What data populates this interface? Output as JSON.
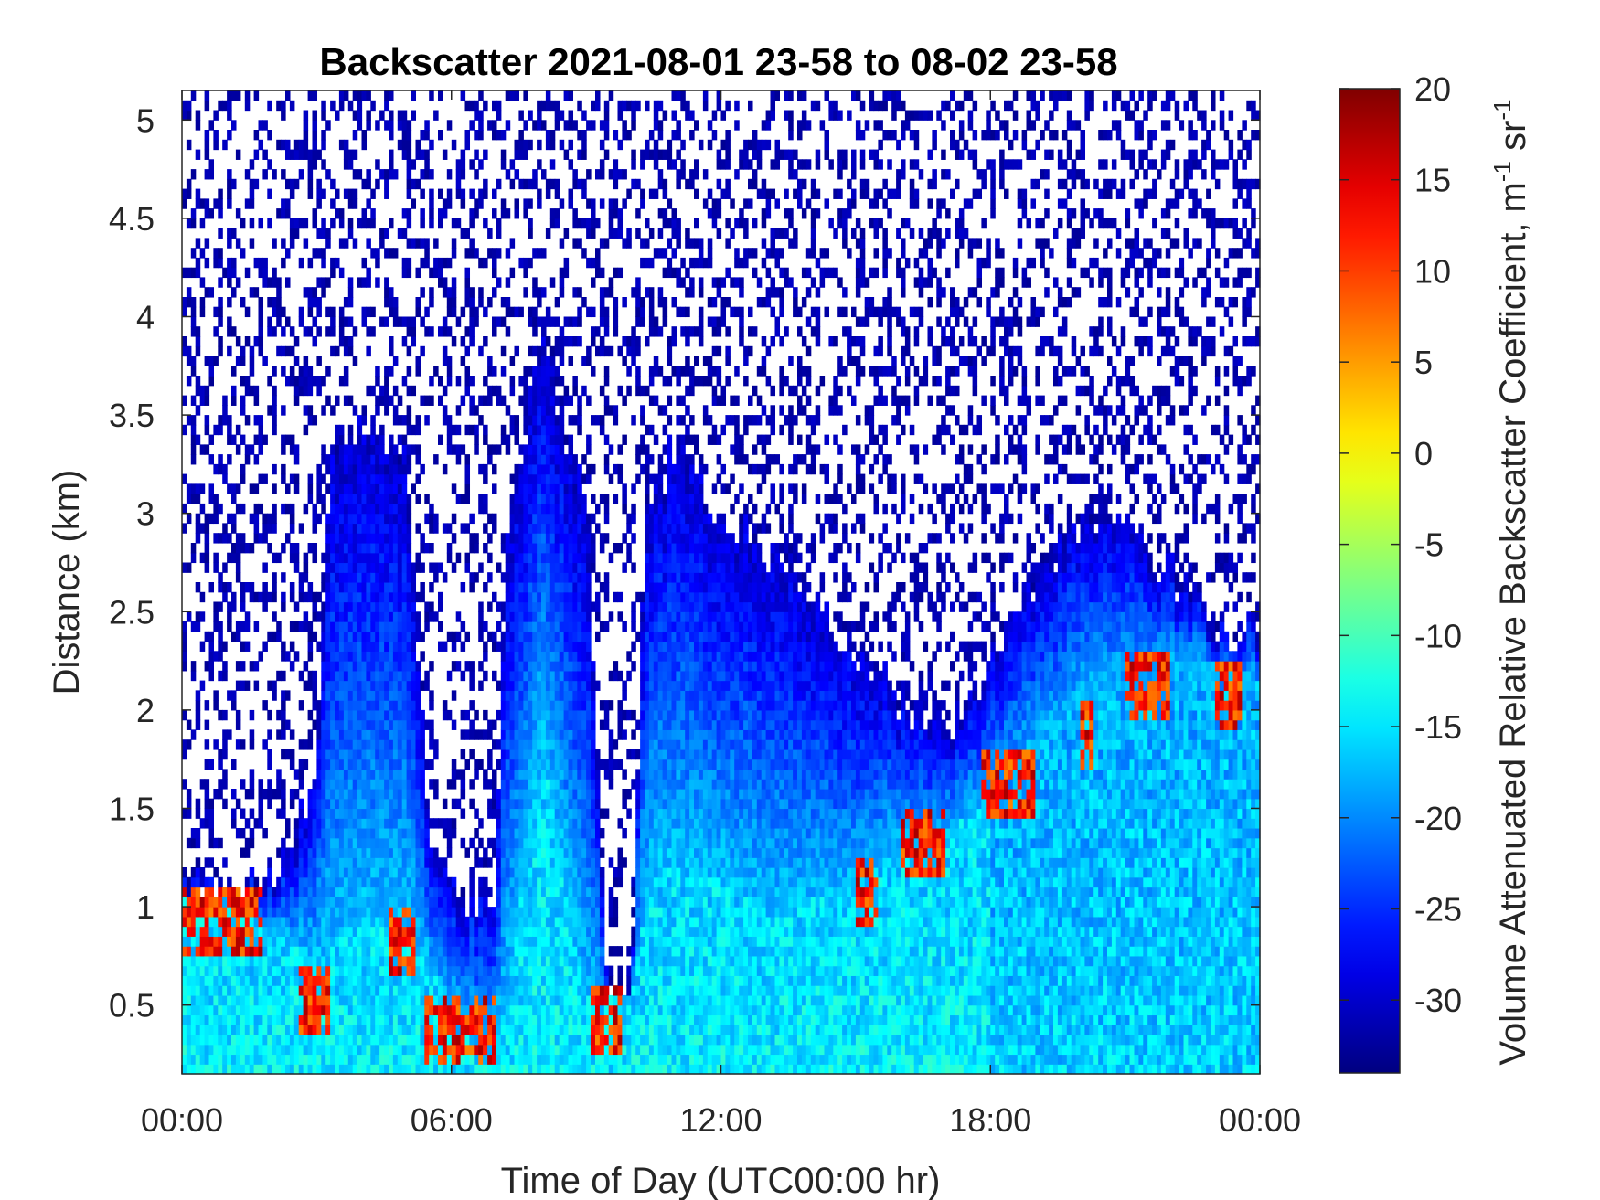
{
  "chart_data": {
    "type": "heatmap",
    "title": "Backscatter 2021-08-01 23-58 to 08-02 23-58",
    "xlabel": "Time of Day (UTC00:00 hr)",
    "ylabel": "Distance (km)",
    "x_range_hours": [
      0,
      24
    ],
    "y_range_km": [
      0.15,
      5.15
    ],
    "x_ticks": [
      {
        "value": 0,
        "label": "00:00"
      },
      {
        "value": 6,
        "label": "06:00"
      },
      {
        "value": 12,
        "label": "12:00"
      },
      {
        "value": 18,
        "label": "18:00"
      },
      {
        "value": 24,
        "label": "00:00"
      }
    ],
    "y_ticks": [
      {
        "value": 0.5,
        "label": "0.5"
      },
      {
        "value": 1,
        "label": "1"
      },
      {
        "value": 1.5,
        "label": "1.5"
      },
      {
        "value": 2,
        "label": "2"
      },
      {
        "value": 2.5,
        "label": "2.5"
      },
      {
        "value": 3,
        "label": "3"
      },
      {
        "value": 3.5,
        "label": "3.5"
      },
      {
        "value": 4,
        "label": "4"
      },
      {
        "value": 4.5,
        "label": "4.5"
      },
      {
        "value": 5,
        "label": "5"
      }
    ],
    "colorbar": {
      "label": "Volume Attenuated Relative Backscatter Coefficient, m",
      "label_unit_sup1": "-1",
      "label_unit_mid": " sr",
      "label_unit_sup2": "-1",
      "range": [
        -34,
        20
      ],
      "ticks": [
        20,
        15,
        10,
        5,
        0,
        -5,
        -10,
        -15,
        -20,
        -25,
        -30
      ],
      "tick_labels": [
        "20",
        "15",
        "10",
        "5",
        "0",
        "-5",
        "-10",
        "-15",
        "-20",
        "-25",
        "-30"
      ],
      "colormap": "jet"
    },
    "grid": false,
    "profile_keypoints": {
      "boundary_top_km": [
        [
          0,
          1.1
        ],
        [
          1,
          1.0
        ],
        [
          2,
          1.1
        ],
        [
          3,
          1.6
        ],
        [
          3.3,
          3.3
        ],
        [
          4,
          3.5
        ],
        [
          5,
          3.2
        ],
        [
          5.5,
          1.3
        ],
        [
          6,
          1.1
        ],
        [
          7,
          1.0
        ],
        [
          7.2,
          2.8
        ],
        [
          8,
          3.9
        ],
        [
          9,
          3.0
        ],
        [
          9.5,
          0.5
        ],
        [
          10,
          0.5
        ],
        [
          10.3,
          3.0
        ],
        [
          11,
          3.3
        ],
        [
          12,
          3.0
        ],
        [
          13,
          2.8
        ],
        [
          14,
          2.5
        ],
        [
          15,
          2.3
        ],
        [
          16,
          2.0
        ],
        [
          17,
          1.9
        ],
        [
          18,
          2.2
        ],
        [
          19,
          2.6
        ],
        [
          20,
          2.9
        ],
        [
          21,
          2.9
        ],
        [
          22,
          2.7
        ],
        [
          23,
          2.4
        ],
        [
          24,
          2.4
        ]
      ],
      "aerosol_layer_top_km": [
        [
          0,
          1.05
        ],
        [
          1,
          1.0
        ],
        [
          2,
          0.85
        ],
        [
          3,
          0.7
        ],
        [
          4,
          0.9
        ],
        [
          5,
          0.9
        ],
        [
          6,
          0.45
        ],
        [
          7,
          0.3
        ],
        [
          7.3,
          0.6
        ],
        [
          8,
          1.8
        ],
        [
          9,
          0.5
        ],
        [
          10,
          0.5
        ],
        [
          10.5,
          1.2
        ],
        [
          12,
          1.1
        ],
        [
          13,
          0.95
        ],
        [
          14,
          1.0
        ],
        [
          15,
          1.05
        ],
        [
          16,
          1.3
        ],
        [
          17,
          1.35
        ],
        [
          18,
          1.5
        ],
        [
          19,
          1.75
        ],
        [
          20,
          2.0
        ],
        [
          21,
          2.1
        ],
        [
          22,
          2.2
        ],
        [
          23,
          2.2
        ],
        [
          24,
          2.1
        ]
      ],
      "strong_layer_events": [
        {
          "t0": 0,
          "t1": 1.8,
          "h": 0.9
        },
        {
          "t0": 2.6,
          "t1": 3.3,
          "h": 0.5
        },
        {
          "t0": 4.6,
          "t1": 5.2,
          "h": 0.8
        },
        {
          "t0": 5.4,
          "t1": 7.0,
          "h": 0.35
        },
        {
          "t0": 9.1,
          "t1": 9.8,
          "h": 0.4
        },
        {
          "t0": 15.0,
          "t1": 15.5,
          "h": 1.05
        },
        {
          "t0": 16.0,
          "t1": 17.0,
          "h": 1.3
        },
        {
          "t0": 17.8,
          "t1": 19.0,
          "h": 1.6
        },
        {
          "t0": 20.0,
          "t1": 20.3,
          "h": 1.85
        },
        {
          "t0": 21.0,
          "t1": 22.0,
          "h": 2.1
        },
        {
          "t0": 23.0,
          "t1": 23.6,
          "h": 2.05
        }
      ]
    }
  }
}
